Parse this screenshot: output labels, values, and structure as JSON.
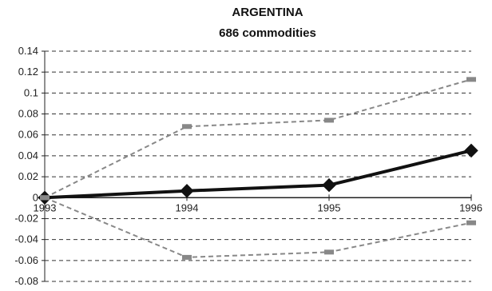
{
  "chart_data": {
    "type": "line",
    "title": "ARGENTINA",
    "subtitle": "686 commodities",
    "xlabel": "",
    "ylabel": "",
    "categories": [
      "1993",
      "1994",
      "1995",
      "1996"
    ],
    "ylim": [
      -0.08,
      0.14
    ],
    "yticks": [
      "0.14",
      "0.12",
      "0.1",
      "0.08",
      "0.06",
      "0.04",
      "0.02",
      "0",
      "-0.02",
      "-0.04",
      "-0.06",
      "-0.08"
    ],
    "grid": true,
    "legend": "none",
    "series": [
      {
        "values": [
          0,
          0.0065,
          0.012,
          0.045
        ],
        "color": "#111111",
        "style": "solid",
        "marker": "diamond"
      },
      {
        "values": [
          0,
          0.068,
          0.074,
          0.113
        ],
        "color": "#888888",
        "style": "dashed",
        "marker": "dash"
      },
      {
        "values": [
          0,
          -0.057,
          -0.052,
          -0.024
        ],
        "color": "#888888",
        "style": "dashed",
        "marker": "dash"
      }
    ]
  }
}
